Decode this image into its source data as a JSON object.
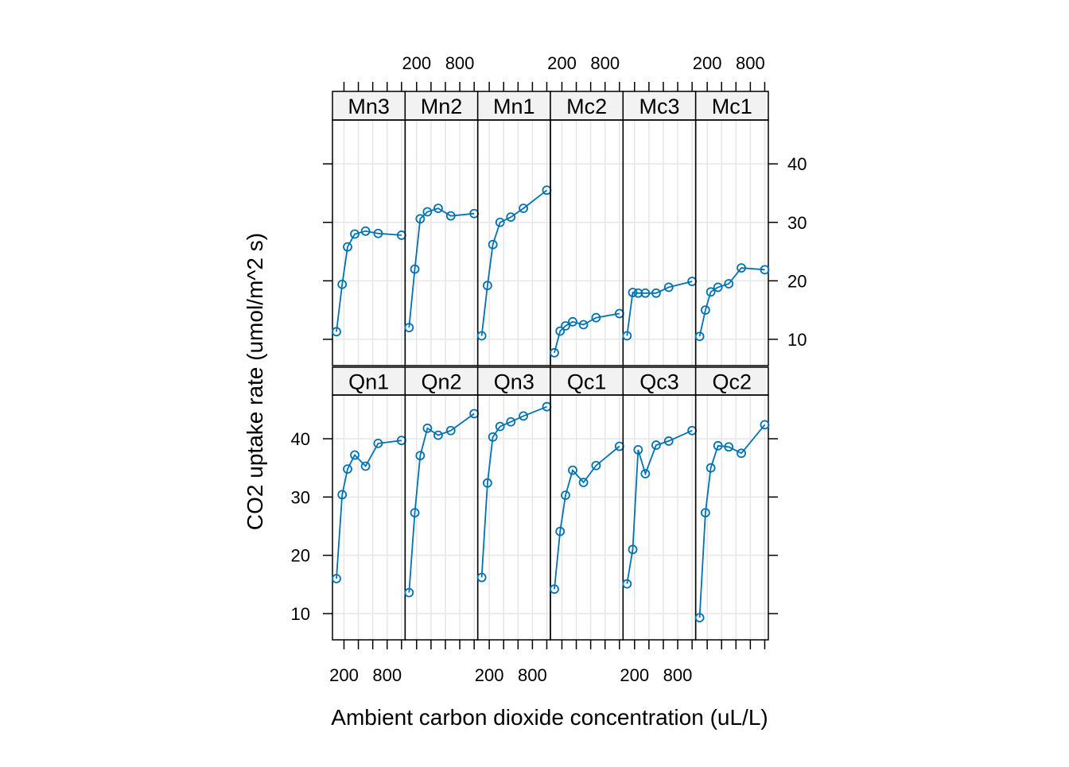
{
  "chart_data": {
    "type": "line",
    "layout": "lattice 6 columns x 2 rows",
    "xlabel": "Ambient carbon dioxide concentration (uL/L)",
    "ylabel": "CO2 uptake rate (umol/m^2 s)",
    "xlim": [
      40,
      1050
    ],
    "ylim": [
      5.5,
      47.5
    ],
    "xticks": [
      200,
      400,
      600,
      800,
      1000
    ],
    "x_tick_labels": [
      "200",
      "800"
    ],
    "y_tick_labels": [
      "10",
      "20",
      "30",
      "40"
    ],
    "grid": true,
    "legend": "none",
    "series_color": "#0072b2",
    "x": [
      95,
      175,
      250,
      350,
      500,
      675,
      1000
    ],
    "panels": [
      {
        "name": "Mn3",
        "values": [
          11.3,
          19.4,
          25.8,
          28.0,
          28.5,
          28.1,
          27.8
        ]
      },
      {
        "name": "Mn2",
        "values": [
          12.0,
          22.0,
          30.6,
          31.8,
          32.4,
          31.1,
          31.5
        ]
      },
      {
        "name": "Mn1",
        "values": [
          10.6,
          19.2,
          26.2,
          30.0,
          30.9,
          32.4,
          35.5
        ]
      },
      {
        "name": "Mc2",
        "values": [
          7.7,
          11.4,
          12.3,
          13.0,
          12.5,
          13.7,
          14.4
        ]
      },
      {
        "name": "Mc3",
        "values": [
          10.6,
          18.0,
          17.9,
          17.9,
          17.9,
          18.9,
          19.9
        ]
      },
      {
        "name": "Mc1",
        "values": [
          10.5,
          15.0,
          18.1,
          18.9,
          19.5,
          22.2,
          21.9
        ]
      },
      {
        "name": "Qn1",
        "values": [
          16.0,
          30.4,
          34.8,
          37.2,
          35.3,
          39.2,
          39.7
        ]
      },
      {
        "name": "Qn2",
        "values": [
          13.6,
          27.3,
          37.1,
          41.8,
          40.6,
          41.4,
          44.3
        ]
      },
      {
        "name": "Qn3",
        "values": [
          16.2,
          32.4,
          40.3,
          42.1,
          42.9,
          43.9,
          45.5
        ]
      },
      {
        "name": "Qc1",
        "values": [
          14.2,
          24.1,
          30.3,
          34.6,
          32.5,
          35.4,
          38.7
        ]
      },
      {
        "name": "Qc3",
        "values": [
          15.1,
          21.0,
          38.1,
          34.0,
          38.9,
          39.6,
          41.4
        ]
      },
      {
        "name": "Qc2",
        "values": [
          9.3,
          27.3,
          35.0,
          38.8,
          38.6,
          37.5,
          42.4
        ]
      }
    ]
  }
}
